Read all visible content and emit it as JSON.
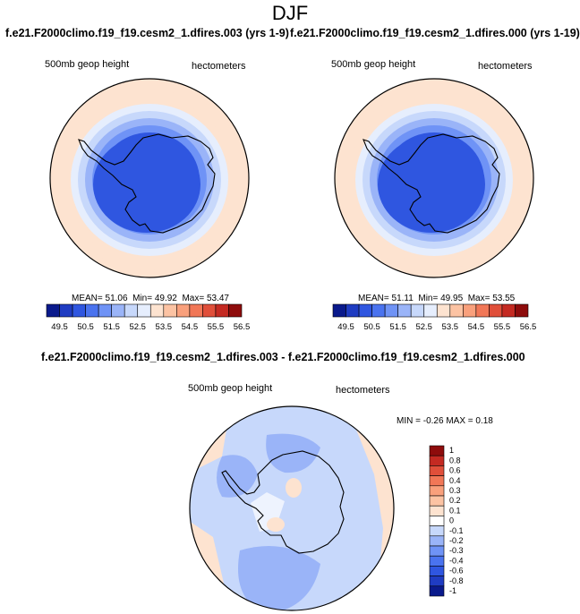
{
  "figure": {
    "title": "DJF",
    "diff_title": "f.e21.F2000climo.f19_f19.cesm2_1.dfires.003 - f.e21.F2000climo.f19_f19.cesm2_1.dfires.000"
  },
  "palette": {
    "levels": [
      "#0a1a8c",
      "#1f3cc2",
      "#2f56e0",
      "#4a73ef",
      "#6f93f6",
      "#9ab4f8",
      "#c7d8fb",
      "#e6eefd",
      "#fde3d0",
      "#fcc3a3",
      "#f9a07c",
      "#f17757",
      "#e04f3a",
      "#c42a22",
      "#8e0c0c"
    ],
    "land_outline": "#000000",
    "diff_zero": "#ffffff"
  },
  "chart_data": [
    {
      "type": "heatmap",
      "projection": "south-polar-stereographic",
      "case_title": "f.e21.F2000climo.f19_f19.cesm2_1.dfires.003 (yrs 1-9)",
      "left_label": "500mb geop height",
      "right_label": "hectometers",
      "stats": {
        "mean_label": "MEAN=",
        "mean": "51.06",
        "min_label": "Min=",
        "min": "49.92",
        "max_label": "Max=",
        "max": "53.47"
      },
      "colorbar": {
        "orientation": "horizontal",
        "ticks": [
          "49.5",
          "50.5",
          "51.5",
          "52.5",
          "53.5",
          "54.5",
          "55.5",
          "56.5"
        ]
      },
      "rings": [
        {
          "value": 50.4
        },
        {
          "value": 51.0
        },
        {
          "value": 51.6
        },
        {
          "value": 52.1
        },
        {
          "value": 52.6
        },
        {
          "value": 53.0
        },
        {
          "value": 53.3
        }
      ]
    },
    {
      "type": "heatmap",
      "projection": "south-polar-stereographic",
      "case_title": "f.e21.F2000climo.f19_f19.cesm2_1.dfires.000 (yrs 1-19)",
      "left_label": "500mb geop height",
      "right_label": "hectometers",
      "stats": {
        "mean_label": "MEAN=",
        "mean": "51.11",
        "min_label": "Min=",
        "min": "49.95",
        "max_label": "Max=",
        "max": "53.55"
      },
      "colorbar": {
        "orientation": "horizontal",
        "ticks": [
          "49.5",
          "50.5",
          "51.5",
          "52.5",
          "53.5",
          "54.5",
          "55.5",
          "56.5"
        ]
      },
      "rings": [
        {
          "value": 50.4
        },
        {
          "value": 51.0
        },
        {
          "value": 51.6
        },
        {
          "value": 52.1
        },
        {
          "value": 52.6
        },
        {
          "value": 53.0
        },
        {
          "value": 53.4
        }
      ]
    },
    {
      "type": "heatmap",
      "projection": "south-polar-stereographic",
      "left_label": "500mb geop height",
      "right_label": "hectometers",
      "stats": {
        "min_label": "MIN =",
        "min": "-0.26",
        "max_label": "MAX =",
        "max": "0.18"
      },
      "colorbar": {
        "orientation": "vertical",
        "levels": [
          "1",
          "0.8",
          "0.6",
          "0.4",
          "0.3",
          "0.2",
          "0.1",
          "0",
          "-0.1",
          "-0.2",
          "-0.3",
          "-0.4",
          "-0.6",
          "-0.8",
          "-1"
        ]
      }
    }
  ]
}
